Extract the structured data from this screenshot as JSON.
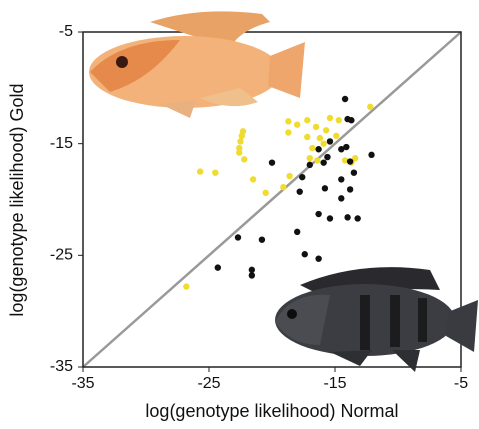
{
  "chart_data": {
    "type": "scatter",
    "x_label": "log(genotype likelihood) Normal",
    "y_label": "log(genotype likelihood) Gold",
    "xlim": [
      -35,
      -5
    ],
    "ylim": [
      -35,
      -5
    ],
    "xticks": [
      -35,
      -25,
      -15,
      -5
    ],
    "yticks": [
      -35,
      -25,
      -15,
      -5
    ],
    "series": [
      {
        "color": "#f0dc2e",
        "x": [
          -12.2,
          -17.2,
          -18.7,
          -18.0,
          -16.5,
          -15.4,
          -14.7,
          -15.7,
          -18.7,
          -22.3,
          -22.4,
          -22.5,
          -14.9,
          -17.2,
          -16.2,
          -16.8,
          -15.9,
          -22.6,
          -22.6,
          -22.2,
          -14.2,
          -13.7,
          -13.4,
          -17.0,
          -16.4,
          -25.7,
          -24.5,
          -21.5,
          -18.6,
          -20.5,
          -19.1,
          -26.8
        ],
        "values": [
          -11.7,
          -12.9,
          -13.0,
          -13.3,
          -13.5,
          -12.7,
          -12.9,
          -13.8,
          -14.0,
          -13.9,
          -14.3,
          -14.8,
          -14.3,
          -14.4,
          -14.5,
          -15.4,
          -15.0,
          -15.4,
          -15.8,
          -16.4,
          -16.5,
          -16.7,
          -16.3,
          -16.3,
          -16.5,
          -17.5,
          -17.6,
          -18.2,
          -17.9,
          -19.4,
          -18.9,
          -27.8
        ]
      },
      {
        "color": "#111111",
        "x": [
          -14.2,
          -14.0,
          -13.7,
          -16.3,
          -15.4,
          -15.6,
          -14.5,
          -14.1,
          -12.1,
          -13.8,
          -20.0,
          -17.0,
          -15.9,
          -17.6,
          -13.5,
          -14.5,
          -17.8,
          -13.8,
          -15.8,
          -14.5,
          -16.3,
          -15.4,
          -14.0,
          -13.2,
          -20.8,
          -22.7,
          -18.0,
          -17.4,
          -16.3,
          -24.3,
          -21.6,
          -21.6
        ],
        "values": [
          -11.0,
          -12.8,
          -12.9,
          -15.5,
          -14.8,
          -16.2,
          -15.5,
          -15.3,
          -16.0,
          -16.6,
          -16.7,
          -16.9,
          -16.7,
          -18.0,
          -17.6,
          -18.2,
          -19.3,
          -19.1,
          -19.0,
          -19.9,
          -21.3,
          -21.7,
          -21.6,
          -21.7,
          -23.6,
          -23.4,
          -22.9,
          -24.9,
          -25.3,
          -26.1,
          -26.3,
          -26.8
        ]
      }
    ]
  }
}
